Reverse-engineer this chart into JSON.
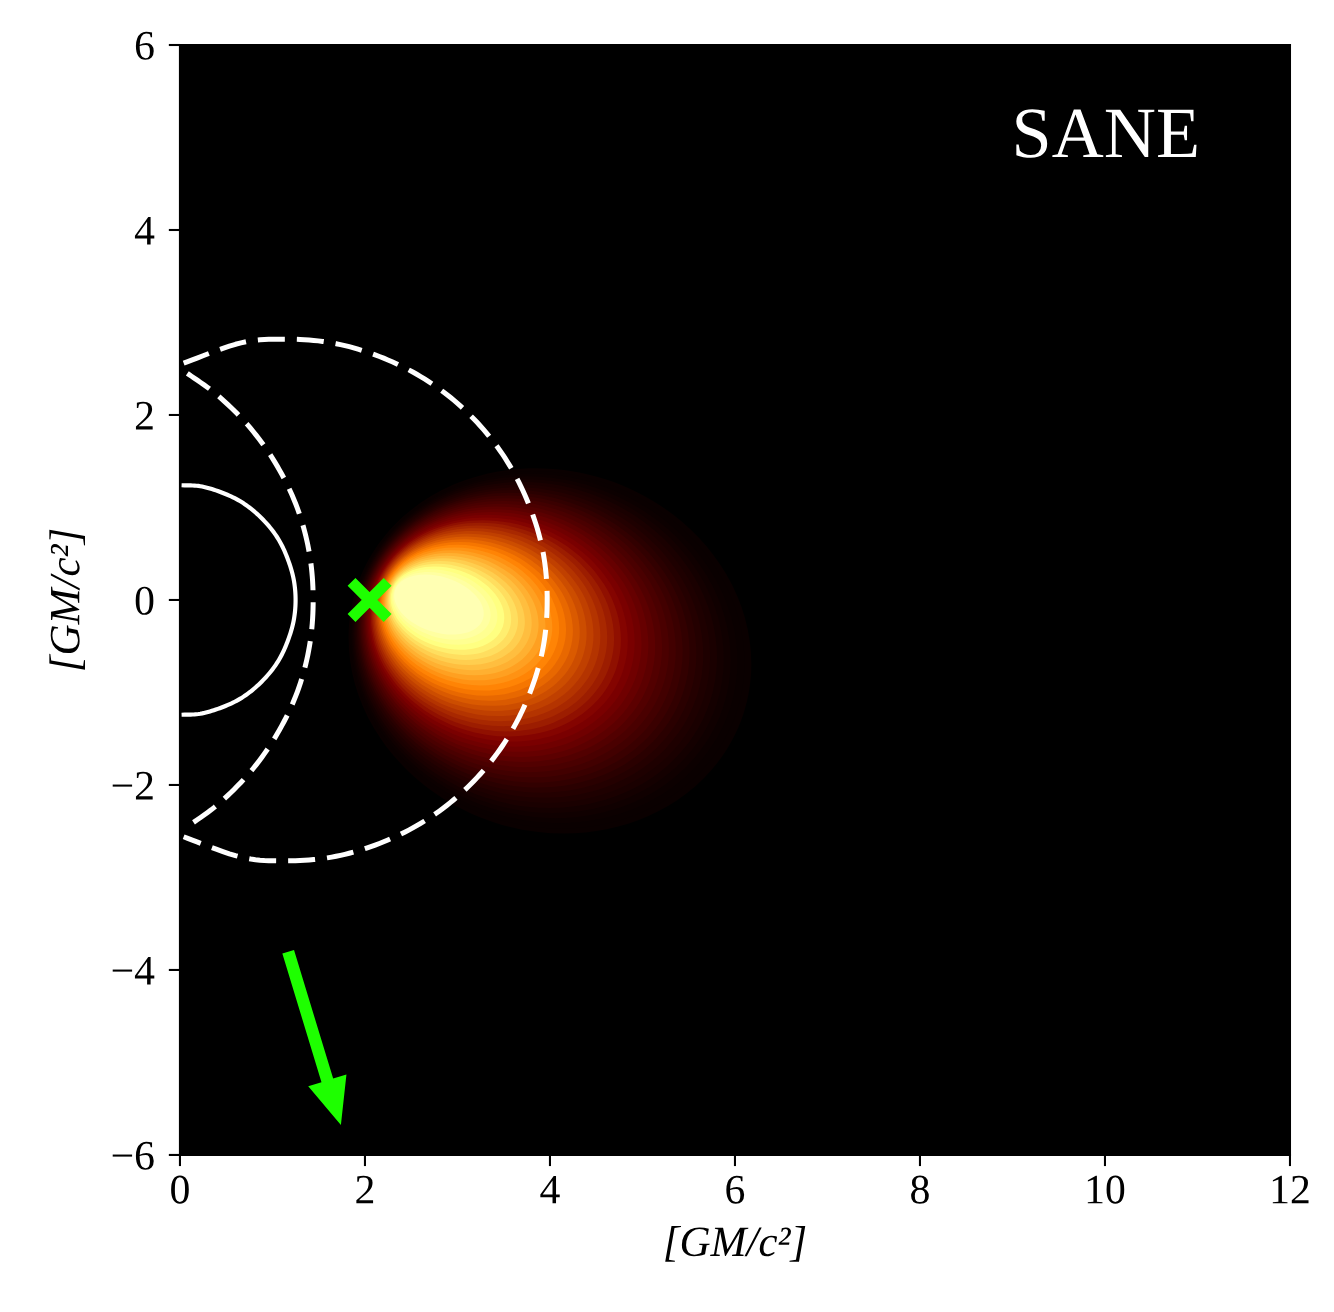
{
  "chart_data": {
    "type": "line",
    "xlabel": "[GM/c²]",
    "ylabel": "[GM/c²]",
    "annotations": [
      "SANE"
    ],
    "xlim": [
      0,
      12
    ],
    "xticks": [
      0,
      2,
      4,
      6,
      8,
      10,
      12
    ],
    "ylim": [
      -6,
      6
    ],
    "yticks": [
      {
        "value": -6,
        "label": "−6"
      },
      {
        "value": -4,
        "label": "−4"
      },
      {
        "value": -2,
        "label": "−2"
      },
      0,
      2,
      4,
      6
    ],
    "series": [
      {
        "color": "#ffffff",
        "line_style": "solid",
        "x": [
          0.04,
          0.22,
          0.43,
          0.63,
          0.8,
          0.96,
          1.08,
          1.17,
          1.23,
          1.25,
          1.23,
          1.17,
          1.08,
          0.96,
          0.8,
          0.63,
          0.43,
          0.22,
          0.04
        ],
        "values": [
          1.24,
          1.23,
          1.17,
          1.08,
          0.96,
          0.8,
          0.63,
          0.43,
          0.22,
          0,
          -0.22,
          -0.43,
          -0.63,
          -0.8,
          -0.96,
          -1.08,
          -1.17,
          -1.23,
          -1.24
        ]
      },
      {
        "color": "#ffffff",
        "line_style": "dashed",
        "x": [
          0.04,
          0.66,
          1.15,
          1.64,
          2.11,
          2.56,
          2.96,
          3.31,
          3.59,
          3.8,
          3.93,
          3.97,
          3.93,
          3.8,
          3.59,
          3.31,
          2.96,
          2.56,
          2.11,
          1.64,
          1.15,
          0.66,
          0.04
        ],
        "values": [
          2.56,
          2.78,
          2.82,
          2.78,
          2.65,
          2.44,
          2.16,
          1.81,
          1.41,
          0.96,
          0.49,
          0,
          -0.49,
          -0.96,
          -1.41,
          -1.81,
          -2.16,
          -2.44,
          -2.65,
          -2.78,
          -2.82,
          -2.78,
          -2.56
        ]
      },
      {
        "color": "#ffffff",
        "line_style": "dashed",
        "x": [
          0.08,
          0.41,
          0.76,
          1.05,
          1.27,
          1.4,
          1.44,
          1.4,
          1.27,
          1.05,
          0.76,
          0.41,
          0.08
        ],
        "values": [
          2.45,
          2.21,
          1.86,
          1.45,
          0.99,
          0.5,
          0,
          -0.5,
          -0.99,
          -1.45,
          -1.86,
          -2.21,
          -2.45
        ]
      },
      {
        "type": "scatter",
        "color": "#1eff00",
        "marker": "cross",
        "x": [
          2.05
        ],
        "values": [
          0
        ]
      }
    ]
  }
}
